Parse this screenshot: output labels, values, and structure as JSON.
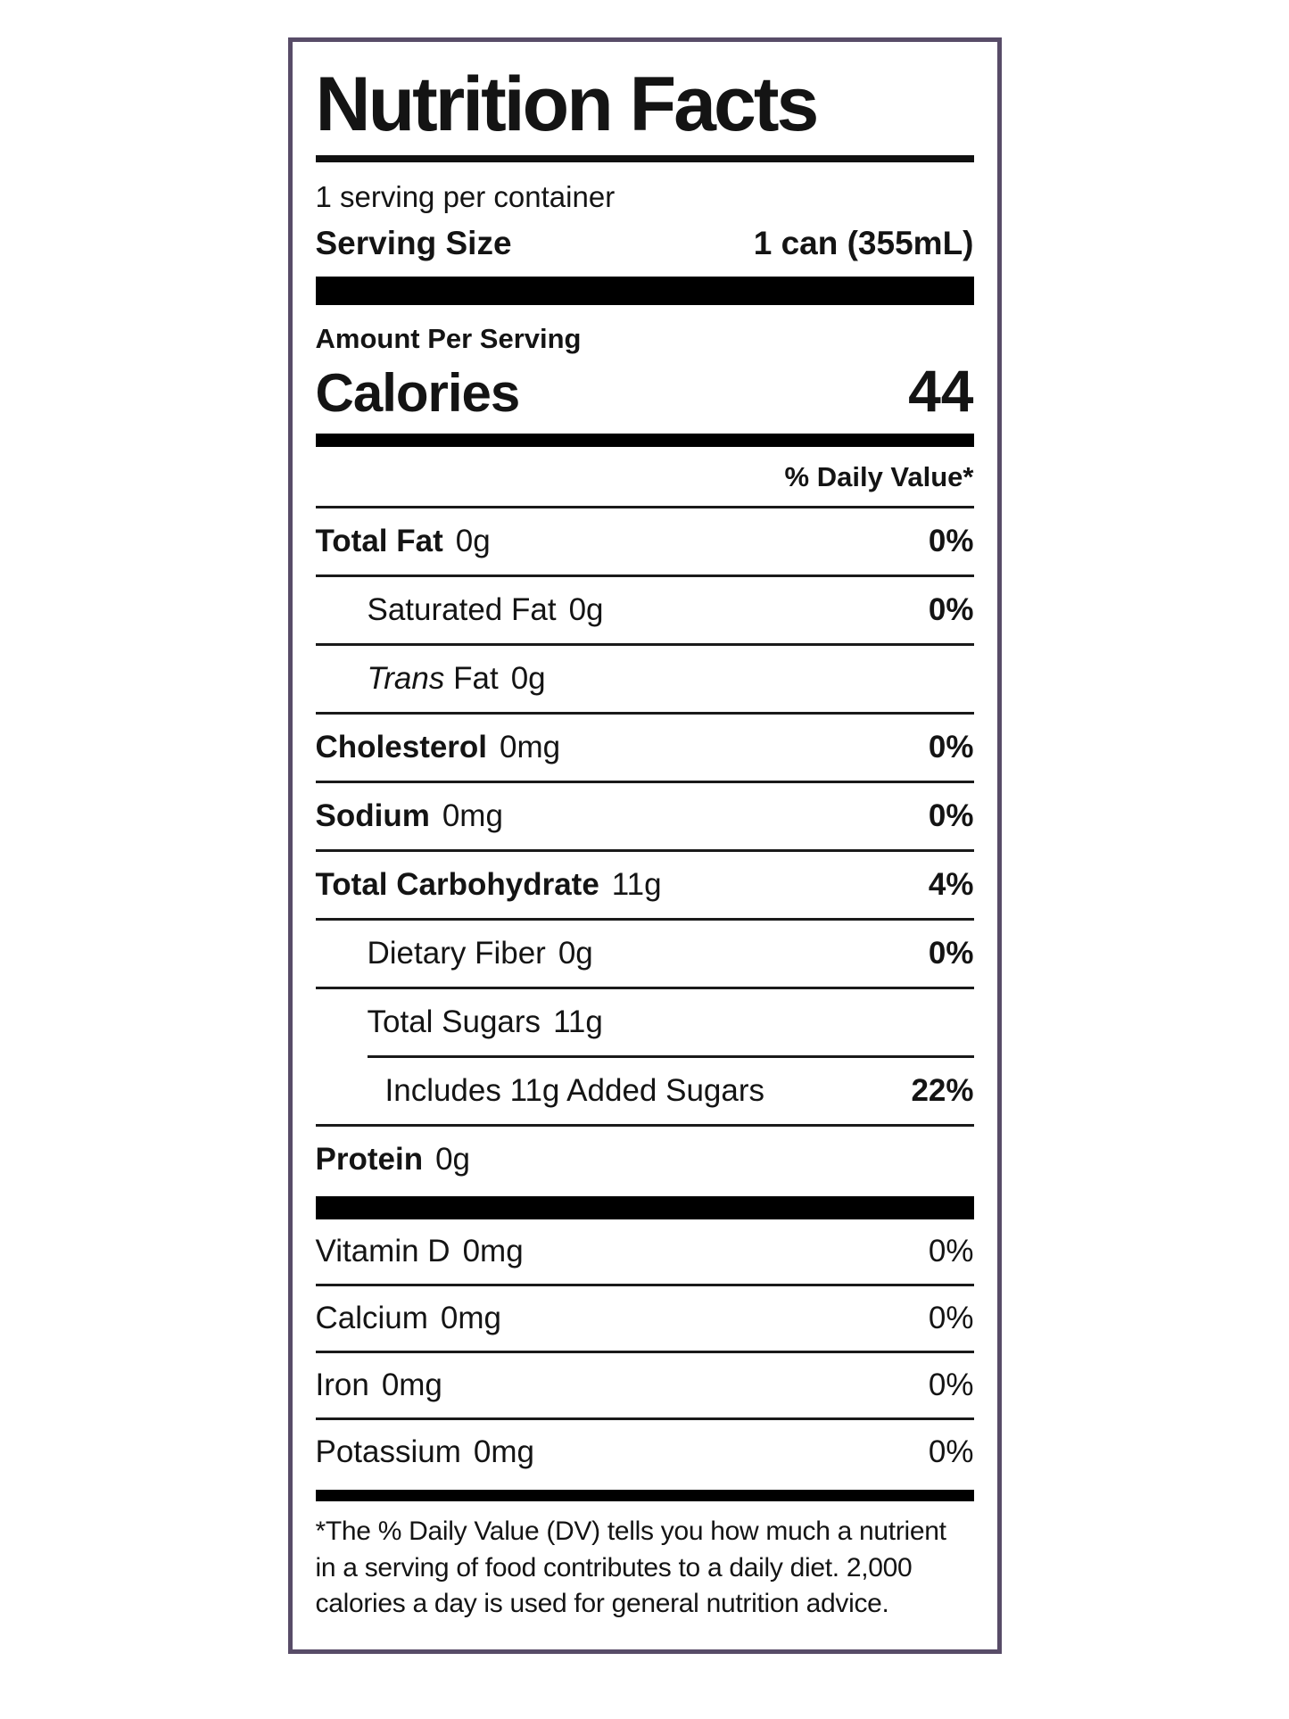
{
  "label": {
    "title": "Nutrition Facts",
    "servings_per_container": "1 serving per container",
    "serving_size": {
      "label": "Serving Size",
      "value": "1 can (355mL)"
    },
    "amount_per_serving": "Amount Per Serving",
    "calories": {
      "label": "Calories",
      "value": "44"
    },
    "daily_value_header": "% Daily Value*",
    "rows": [
      {
        "name": "Total Fat",
        "amount": "0g",
        "dv": "0%"
      },
      {
        "name": "Saturated Fat",
        "amount": "0g",
        "dv": "0%"
      },
      {
        "name_italic": "Trans",
        "name": "Fat",
        "amount": "0g",
        "dv": ""
      },
      {
        "name": "Cholesterol",
        "amount": "0mg",
        "dv": "0%"
      },
      {
        "name": "Sodium",
        "amount": "0mg",
        "dv": "0%"
      },
      {
        "name": "Total Carbohydrate",
        "amount": "11g",
        "dv": "4%"
      },
      {
        "name": "Dietary Fiber",
        "amount": "0g",
        "dv": "0%"
      },
      {
        "name": "Total Sugars",
        "amount": "11g",
        "dv": ""
      },
      {
        "name": "Includes 11g Added Sugars",
        "amount": "",
        "dv": "22%"
      },
      {
        "name": "Protein",
        "amount": "0g",
        "dv": ""
      }
    ],
    "micronutrients": [
      {
        "name": "Vitamin D",
        "amount": "0mg",
        "dv": "0%"
      },
      {
        "name": "Calcium",
        "amount": "0mg",
        "dv": "0%"
      },
      {
        "name": "Iron",
        "amount": "0mg",
        "dv": "0%"
      },
      {
        "name": "Potassium",
        "amount": "0mg",
        "dv": "0%"
      }
    ],
    "footnote": "*The % Daily Value (DV) tells you how much a nutrient in a serving of food contributes to a daily diet. 2,000 calories a day is used for general nutrition advice.",
    "colors": {
      "border": "#584c68",
      "text": "#141414",
      "bar": "#000000"
    }
  }
}
